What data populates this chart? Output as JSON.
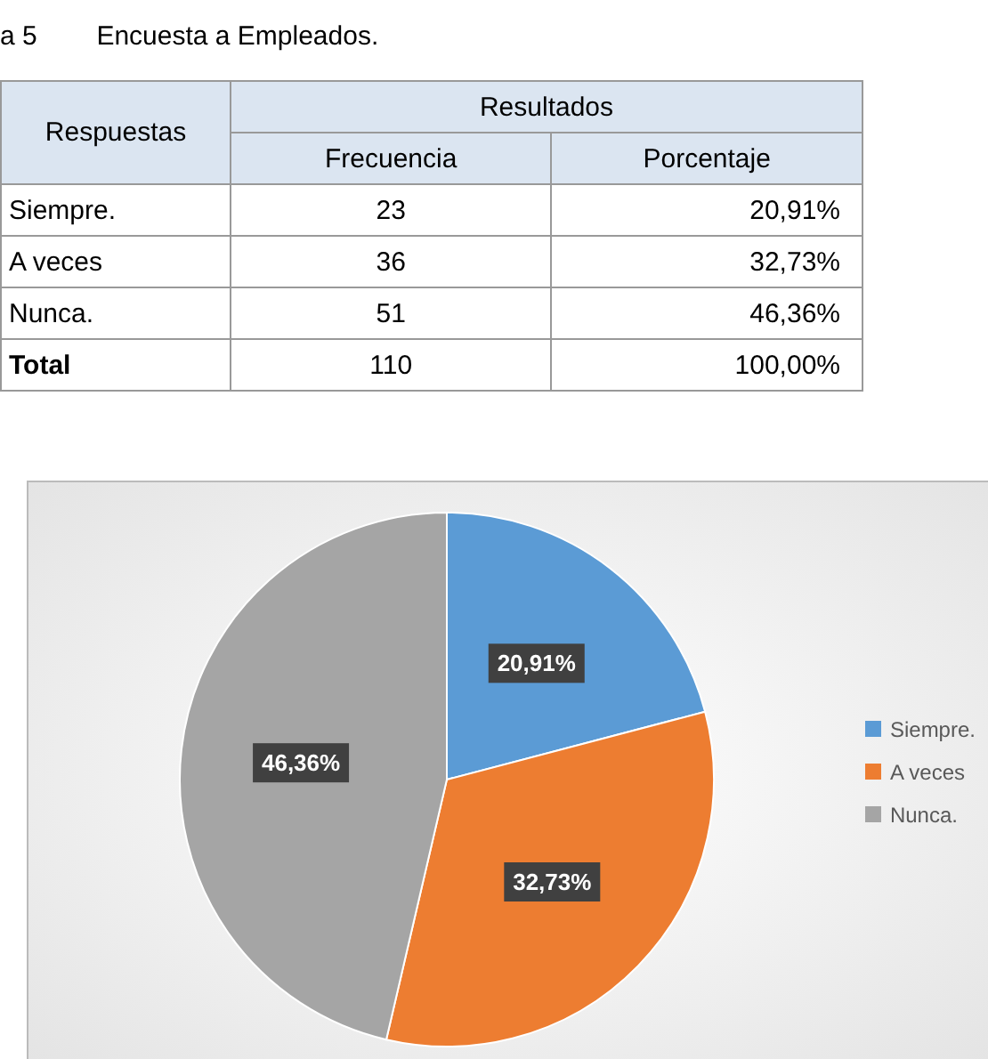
{
  "chart_data": [
    {
      "type": "other",
      "title": "a 5        Encuesta a Empleados.",
      "ylabel": "Respuestas",
      "legend_title": "Resultados",
      "categories": [
        "Siempre.",
        "A veces",
        "Nunca.",
        "Total"
      ],
      "series": [
        {
          "name": "Frecuencia",
          "values": [
            23,
            36,
            51,
            110
          ],
          "value_labels": [
            "23",
            "36",
            "51",
            "110"
          ]
        },
        {
          "name": "Porcentaje",
          "values": [
            20.91,
            32.73,
            46.36,
            100
          ],
          "value_labels": [
            "20,91%",
            "32,73%",
            "46,36%",
            "100,00%"
          ]
        }
      ]
    },
    {
      "type": "pie",
      "categories": [
        "Siempre.",
        "A veces",
        "Nunca."
      ],
      "values": [
        20.91,
        32.73,
        46.36
      ],
      "value_labels": [
        "20,91%",
        "32,73%",
        "46,36%"
      ],
      "colors": [
        "#5b9bd5",
        "#ed7d31",
        "#a5a5a5"
      ],
      "legend": "right"
    }
  ]
}
